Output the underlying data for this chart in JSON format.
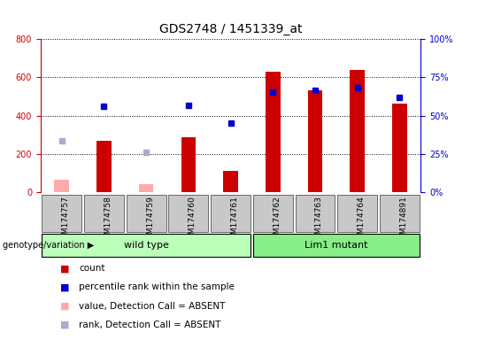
{
  "title": "GDS2748 / 1451339_at",
  "categories": [
    "GSM174757",
    "GSM174758",
    "GSM174759",
    "GSM174760",
    "GSM174761",
    "GSM174762",
    "GSM174763",
    "GSM174764",
    "GSM174891"
  ],
  "count_values": [
    null,
    270,
    null,
    285,
    110,
    630,
    530,
    640,
    465
  ],
  "count_absent_values": [
    65,
    null,
    40,
    null,
    null,
    null,
    null,
    null,
    null
  ],
  "rank_values": [
    null,
    450,
    null,
    455,
    360,
    525,
    530,
    548,
    495
  ],
  "rank_absent_values": [
    270,
    null,
    210,
    null,
    null,
    null,
    null,
    null,
    null
  ],
  "left_ylim": [
    0,
    800
  ],
  "left_yticks": [
    0,
    200,
    400,
    600,
    800
  ],
  "right_ylim": [
    0,
    100
  ],
  "right_yticks": [
    0,
    25,
    50,
    75,
    100
  ],
  "right_yticklabels": [
    "0%",
    "25%",
    "50%",
    "75%",
    "100%"
  ],
  "n_wild": 5,
  "n_mutant": 4,
  "group_wild_label": "wild type",
  "group_mutant_label": "Lim1 mutant",
  "group_label_row": "genotype/variation",
  "count_color": "#cc0000",
  "count_absent_color": "#ffaaaa",
  "rank_color": "#0000cc",
  "rank_absent_color": "#aaaacc",
  "left_axis_color": "#cc0000",
  "right_axis_color": "#0000cc",
  "bg_xtick": "#c8c8c8",
  "bg_group_wild": "#bbffbb",
  "bg_group_mutant": "#88ee88",
  "title_fontsize": 10,
  "tick_fontsize": 7,
  "label_fontsize": 6.5,
  "group_fontsize": 8,
  "legend_fontsize": 7.5
}
